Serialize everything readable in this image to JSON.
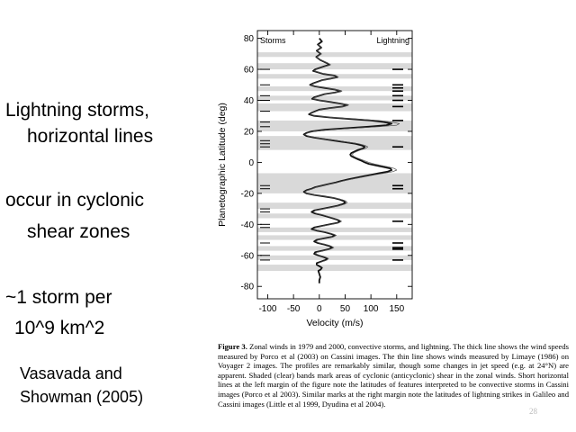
{
  "slide": {
    "bullet1_line1": "Lightning storms,",
    "bullet1_line2": "horizontal lines",
    "bullet2_line1": "occur in cyclonic",
    "bullet2_line2": "shear zones",
    "bullet3_line1": "~1 storm per",
    "bullet3_line2": "10^9 km^2",
    "citation_line1": "Vasavada and",
    "citation_line2": "Showman (2005)"
  },
  "caption": {
    "figure_label": "Figure 3.",
    "text": "Zonal winds in 1979 and 2000, convective storms, and lightning. The thick line shows the wind speeds measured by Porco et al (2003) on Cassini images. The thin line shows winds measured by Limaye (1986) on Voyager 2 images. The profiles are remarkably similar, though some changes in jet speed (e.g. at 24°N) are apparent. Shaded (clear) bands mark areas of cyclonic (anticyclonic) shear in the zonal winds. Short horizontal lines at the left margin of the figure note the latitudes of features interpreted to be convective storms in Cassini images (Porco et al 2003). Similar marks at the right margin note the latitudes of lightning strikes in Galileo and Cassini images (Little et al 1999, Dyudina et al 2004).",
    "page_number": "28"
  },
  "chart_data": {
    "type": "line",
    "xlabel": "Velocity (m/s)",
    "ylabel": "Planetographic Latitude (deg)",
    "left_label": "Storms",
    "right_label": "Lightning",
    "xlim": [
      -120,
      180
    ],
    "ylim": [
      -88,
      85
    ],
    "xticks": [
      -100,
      -50,
      0,
      50,
      100,
      150
    ],
    "yticks": [
      -80,
      -60,
      -40,
      -20,
      0,
      20,
      40,
      60,
      80
    ],
    "cyclonic_bands": [
      [
        68,
        71
      ],
      [
        60,
        64
      ],
      [
        54,
        57
      ],
      [
        46,
        49
      ],
      [
        40,
        43
      ],
      [
        33,
        38
      ],
      [
        20,
        27
      ],
      [
        8,
        17
      ],
      [
        -20,
        -7
      ],
      [
        -30,
        -26
      ],
      [
        -36,
        -33
      ],
      [
        -45,
        -42
      ],
      [
        -50,
        -47
      ],
      [
        -57,
        -54
      ],
      [
        -63,
        -60
      ],
      [
        -70,
        -66
      ]
    ],
    "storms_latitudes": [
      60,
      50,
      43,
      40,
      33,
      26,
      23,
      14,
      12,
      10,
      -15,
      -17,
      -30,
      -32,
      -40,
      -42,
      -52,
      -60,
      -63
    ],
    "lightning_latitudes": [
      60,
      50,
      48,
      46,
      43,
      40,
      36,
      27,
      10,
      -15,
      -17,
      -38,
      -52,
      -55,
      -56,
      -63
    ],
    "series": [
      {
        "name": "Cassini (thick)",
        "style": "thick",
        "points": [
          [
            0,
            80
          ],
          [
            5,
            78
          ],
          [
            -3,
            76
          ],
          [
            4,
            74
          ],
          [
            -5,
            72
          ],
          [
            3,
            70
          ],
          [
            -6,
            68
          ],
          [
            2,
            66
          ],
          [
            15,
            64
          ],
          [
            20,
            63
          ],
          [
            10,
            62
          ],
          [
            -8,
            60
          ],
          [
            -12,
            59
          ],
          [
            -2,
            58
          ],
          [
            8,
            57
          ],
          [
            30,
            56
          ],
          [
            35,
            55
          ],
          [
            22,
            54
          ],
          [
            5,
            53
          ],
          [
            -12,
            51
          ],
          [
            -18,
            50
          ],
          [
            -8,
            49
          ],
          [
            10,
            48
          ],
          [
            30,
            47
          ],
          [
            42,
            46
          ],
          [
            30,
            45
          ],
          [
            10,
            44
          ],
          [
            -10,
            42
          ],
          [
            -14,
            41
          ],
          [
            0,
            40
          ],
          [
            20,
            39
          ],
          [
            40,
            38
          ],
          [
            55,
            37
          ],
          [
            45,
            36
          ],
          [
            20,
            35
          ],
          [
            0,
            34
          ],
          [
            -15,
            32
          ],
          [
            -20,
            31
          ],
          [
            -10,
            30
          ],
          [
            20,
            29
          ],
          [
            60,
            28
          ],
          [
            100,
            27
          ],
          [
            125,
            26
          ],
          [
            140,
            25
          ],
          [
            130,
            24
          ],
          [
            95,
            23
          ],
          [
            50,
            22
          ],
          [
            10,
            21
          ],
          [
            -15,
            20
          ],
          [
            -25,
            19
          ],
          [
            -30,
            18
          ],
          [
            -25,
            17
          ],
          [
            -10,
            16
          ],
          [
            10,
            15
          ],
          [
            30,
            14
          ],
          [
            50,
            13
          ],
          [
            70,
            12
          ],
          [
            82,
            11
          ],
          [
            88,
            10
          ],
          [
            85,
            9
          ],
          [
            75,
            8
          ],
          [
            68,
            7
          ],
          [
            62,
            6
          ],
          [
            60,
            5
          ],
          [
            62,
            4
          ],
          [
            68,
            3
          ],
          [
            75,
            2
          ],
          [
            82,
            1
          ],
          [
            88,
            0
          ],
          [
            96,
            -1
          ],
          [
            110,
            -2
          ],
          [
            125,
            -3
          ],
          [
            138,
            -4
          ],
          [
            140,
            -5
          ],
          [
            132,
            -6
          ],
          [
            115,
            -7
          ],
          [
            100,
            -8
          ],
          [
            85,
            -9
          ],
          [
            70,
            -10
          ],
          [
            55,
            -11
          ],
          [
            42,
            -12
          ],
          [
            32,
            -13
          ],
          [
            18,
            -14
          ],
          [
            5,
            -15
          ],
          [
            -8,
            -16
          ],
          [
            -15,
            -17
          ],
          [
            -25,
            -18
          ],
          [
            -30,
            -19
          ],
          [
            -25,
            -20
          ],
          [
            -10,
            -21
          ],
          [
            10,
            -22
          ],
          [
            28,
            -23
          ],
          [
            40,
            -24
          ],
          [
            48,
            -25
          ],
          [
            50,
            -26
          ],
          [
            45,
            -27
          ],
          [
            35,
            -28
          ],
          [
            20,
            -29
          ],
          [
            5,
            -30
          ],
          [
            -10,
            -31
          ],
          [
            -15,
            -32
          ],
          [
            -8,
            -33
          ],
          [
            5,
            -34
          ],
          [
            15,
            -35
          ],
          [
            25,
            -36
          ],
          [
            35,
            -37
          ],
          [
            40,
            -38
          ],
          [
            35,
            -39
          ],
          [
            20,
            -40
          ],
          [
            5,
            -41
          ],
          [
            -10,
            -42
          ],
          [
            -15,
            -43
          ],
          [
            -5,
            -44
          ],
          [
            10,
            -45
          ],
          [
            22,
            -46
          ],
          [
            30,
            -47
          ],
          [
            25,
            -48
          ],
          [
            10,
            -49
          ],
          [
            -5,
            -50
          ],
          [
            -10,
            -51
          ],
          [
            -3,
            -52
          ],
          [
            10,
            -53
          ],
          [
            20,
            -54
          ],
          [
            25,
            -55
          ],
          [
            18,
            -56
          ],
          [
            5,
            -57
          ],
          [
            -8,
            -58
          ],
          [
            -10,
            -59
          ],
          [
            -2,
            -60
          ],
          [
            8,
            -61
          ],
          [
            15,
            -62
          ],
          [
            12,
            -63
          ],
          [
            3,
            -64
          ],
          [
            -5,
            -65
          ],
          [
            -5,
            -66
          ],
          [
            0,
            -67
          ],
          [
            5,
            -68
          ],
          [
            3,
            -69
          ],
          [
            -2,
            -70
          ],
          [
            0,
            -72
          ],
          [
            2,
            -74
          ],
          [
            0,
            -76
          ],
          [
            0,
            -78
          ]
        ]
      },
      {
        "name": "Voyager 2 (thin)",
        "style": "thin",
        "points": [
          [
            -3,
            76
          ],
          [
            5,
            74
          ],
          [
            -4,
            72
          ],
          [
            4,
            70
          ],
          [
            -5,
            68
          ],
          [
            3,
            66
          ],
          [
            16,
            64
          ],
          [
            22,
            63
          ],
          [
            12,
            62
          ],
          [
            -6,
            60
          ],
          [
            -10,
            59
          ],
          [
            0,
            58
          ],
          [
            10,
            57
          ],
          [
            32,
            56
          ],
          [
            37,
            55
          ],
          [
            24,
            54
          ],
          [
            7,
            53
          ],
          [
            -10,
            51
          ],
          [
            -16,
            50
          ],
          [
            -6,
            49
          ],
          [
            12,
            48
          ],
          [
            32,
            47
          ],
          [
            44,
            46
          ],
          [
            32,
            45
          ],
          [
            12,
            44
          ],
          [
            -8,
            42
          ],
          [
            -12,
            41
          ],
          [
            2,
            40
          ],
          [
            22,
            39
          ],
          [
            42,
            38
          ],
          [
            57,
            37
          ],
          [
            47,
            36
          ],
          [
            22,
            35
          ],
          [
            2,
            34
          ],
          [
            -13,
            32
          ],
          [
            -18,
            31
          ],
          [
            -8,
            30
          ],
          [
            25,
            29
          ],
          [
            70,
            28
          ],
          [
            115,
            27
          ],
          [
            140,
            26
          ],
          [
            155,
            25
          ],
          [
            150,
            24
          ],
          [
            115,
            23
          ],
          [
            65,
            22
          ],
          [
            20,
            21
          ],
          [
            -10,
            20
          ],
          [
            -22,
            19
          ],
          [
            -28,
            18
          ],
          [
            -22,
            17
          ],
          [
            -6,
            16
          ],
          [
            14,
            15
          ],
          [
            36,
            14
          ],
          [
            56,
            13
          ],
          [
            76,
            12
          ],
          [
            88,
            11
          ],
          [
            94,
            10
          ],
          [
            90,
            9
          ],
          [
            80,
            8
          ],
          [
            72,
            7
          ],
          [
            66,
            6
          ],
          [
            64,
            5
          ],
          [
            66,
            4
          ],
          [
            72,
            3
          ],
          [
            80,
            2
          ],
          [
            88,
            1
          ],
          [
            96,
            0
          ],
          [
            106,
            -1
          ],
          [
            120,
            -2
          ],
          [
            135,
            -3
          ],
          [
            146,
            -4
          ],
          [
            150,
            -5
          ],
          [
            142,
            -6
          ],
          [
            125,
            -7
          ],
          [
            108,
            -8
          ],
          [
            92,
            -9
          ],
          [
            76,
            -10
          ],
          [
            60,
            -11
          ],
          [
            46,
            -12
          ],
          [
            34,
            -13
          ],
          [
            20,
            -14
          ],
          [
            7,
            -15
          ],
          [
            -6,
            -16
          ],
          [
            -13,
            -17
          ],
          [
            -23,
            -18
          ],
          [
            -28,
            -19
          ],
          [
            -23,
            -20
          ],
          [
            -8,
            -21
          ],
          [
            12,
            -22
          ],
          [
            30,
            -23
          ],
          [
            44,
            -24
          ],
          [
            52,
            -25
          ],
          [
            54,
            -26
          ],
          [
            49,
            -27
          ],
          [
            38,
            -28
          ],
          [
            23,
            -29
          ],
          [
            8,
            -30
          ],
          [
            -7,
            -31
          ],
          [
            -12,
            -32
          ],
          [
            -5,
            -33
          ],
          [
            8,
            -34
          ],
          [
            18,
            -35
          ],
          [
            28,
            -36
          ],
          [
            38,
            -37
          ],
          [
            43,
            -38
          ],
          [
            38,
            -39
          ],
          [
            23,
            -40
          ],
          [
            8,
            -41
          ],
          [
            -7,
            -42
          ],
          [
            -12,
            -43
          ],
          [
            -2,
            -44
          ],
          [
            13,
            -45
          ],
          [
            25,
            -46
          ],
          [
            33,
            -47
          ],
          [
            28,
            -48
          ],
          [
            13,
            -49
          ],
          [
            -2,
            -50
          ],
          [
            -7,
            -51
          ],
          [
            0,
            -52
          ],
          [
            13,
            -53
          ],
          [
            23,
            -54
          ],
          [
            28,
            -55
          ],
          [
            21,
            -56
          ],
          [
            8,
            -57
          ],
          [
            -5,
            -58
          ],
          [
            -7,
            -59
          ],
          [
            1,
            -60
          ],
          [
            11,
            -61
          ],
          [
            18,
            -62
          ],
          [
            15,
            -63
          ],
          [
            6,
            -64
          ],
          [
            -2,
            -65
          ]
        ]
      }
    ]
  }
}
